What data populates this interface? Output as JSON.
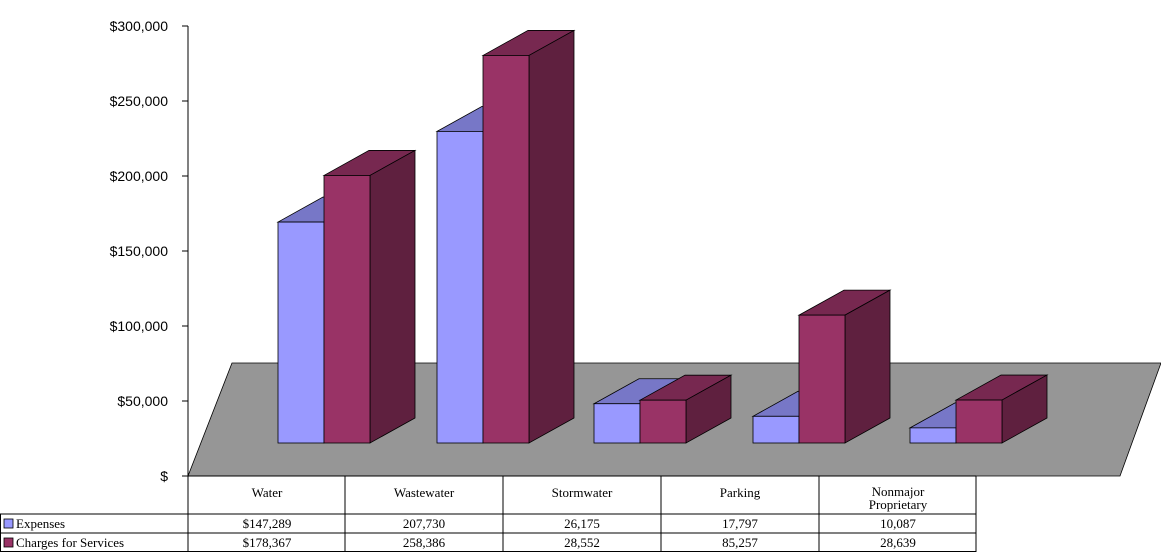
{
  "chart_data": {
    "type": "bar",
    "subtype": "3d-clustered-column-with-data-table",
    "categories": [
      "Water",
      "Wastewater",
      "Stormwater",
      "Parking",
      "Nonmajor Proprietary"
    ],
    "category_lines": [
      [
        "Water"
      ],
      [
        "Wastewater"
      ],
      [
        "Stormwater"
      ],
      [
        "Parking"
      ],
      [
        "Nonmajor",
        "Proprietary"
      ]
    ],
    "series": [
      {
        "name": "Expenses",
        "values": [
          147289,
          207730,
          26175,
          17797,
          10087
        ],
        "labels": [
          "$147,289",
          "207,730",
          "26,175",
          "17,797",
          "10,087"
        ],
        "color": "#9999ff"
      },
      {
        "name": "Charges for Services",
        "values": [
          178367,
          258386,
          28552,
          85257,
          28639
        ],
        "labels": [
          "$178,367",
          "258,386",
          "28,552",
          "85,257",
          "28,639"
        ],
        "color": "#993366"
      }
    ],
    "y_ticks": [
      "$",
      "$50,000",
      "$100,000",
      "$150,000",
      "$200,000",
      "$250,000",
      "$300,000"
    ],
    "ylim": [
      0,
      300000
    ],
    "grid": false,
    "legend": "data-table-left",
    "floor_color": "#969696"
  }
}
